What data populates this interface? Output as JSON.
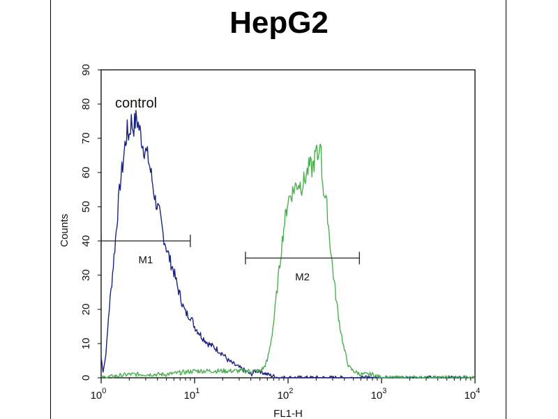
{
  "chart_data": {
    "type": "line",
    "title": "HepG2",
    "xlabel": "FL1-H",
    "ylabel": "Counts",
    "x_scale": "log",
    "xlim": [
      1,
      10000
    ],
    "ylim": [
      0,
      90
    ],
    "x_ticks": [
      {
        "value": 1,
        "label": "10",
        "exp": "0"
      },
      {
        "value": 10,
        "label": "10",
        "exp": "1"
      },
      {
        "value": 100,
        "label": "10",
        "exp": "2"
      },
      {
        "value": 1000,
        "label": "10",
        "exp": "3"
      },
      {
        "value": 10000,
        "label": "10",
        "exp": "4"
      }
    ],
    "y_ticks": [
      0,
      10,
      20,
      30,
      40,
      50,
      60,
      70,
      80,
      90
    ],
    "grid": false,
    "annotation": "control",
    "series": [
      {
        "color": "#1a237e",
        "x": [
          1.0,
          1.05,
          1.1,
          1.15,
          1.2,
          1.3,
          1.4,
          1.5,
          1.6,
          1.7,
          1.8,
          1.9,
          2.0,
          2.1,
          2.2,
          2.4,
          2.6,
          2.8,
          3.0,
          3.2,
          3.5,
          3.8,
          4.2,
          4.6,
          5.0,
          5.5,
          6.0,
          6.5,
          7.0,
          7.5,
          8.0,
          9.0,
          10.0,
          12.0,
          14.0,
          16.0,
          18.0,
          20.0,
          23.0,
          26.0,
          30.0,
          35.0,
          40.0,
          45.0,
          50.0,
          60.0,
          80.0,
          100.0,
          150.0,
          200.0,
          500.0,
          1000.0,
          10000.0
        ],
        "y": [
          6,
          2,
          5,
          10,
          18,
          28,
          38,
          48,
          57,
          62,
          68,
          72,
          71,
          75,
          73,
          76,
          72,
          68,
          66,
          64,
          58,
          52,
          48,
          42,
          38,
          34,
          31,
          27,
          24,
          21,
          19,
          18,
          15,
          12,
          10,
          9,
          8,
          7,
          5,
          4,
          3,
          2,
          1,
          2,
          2,
          1,
          0,
          0,
          0,
          0,
          0,
          0,
          0
        ]
      },
      {
        "color": "#4caf50",
        "x": [
          1.0,
          2.0,
          5.0,
          10.0,
          20.0,
          30.0,
          40.0,
          50.0,
          55.0,
          60.0,
          65.0,
          70.0,
          75.0,
          80.0,
          85.0,
          90.0,
          95.0,
          100.0,
          110.0,
          120.0,
          130.0,
          140.0,
          150.0,
          160.0,
          170.0,
          180.0,
          190.0,
          200.0,
          210.0,
          220.0,
          230.0,
          240.0,
          260.0,
          280.0,
          300.0,
          330.0,
          360.0,
          400.0,
          450.0,
          500.0,
          600.0,
          800.0,
          1000.0,
          2000.0,
          10000.0
        ],
        "y": [
          0,
          1,
          1,
          2,
          2,
          2,
          2,
          2,
          3,
          5,
          10,
          16,
          24,
          31,
          38,
          44,
          48,
          52,
          54,
          56,
          57,
          56,
          58,
          60,
          62,
          61,
          63,
          66,
          64,
          71,
          60,
          55,
          50,
          40,
          32,
          22,
          15,
          8,
          3,
          2,
          1,
          1,
          0,
          0,
          0
        ]
      }
    ],
    "markers": [
      {
        "label": "M1",
        "x_start": 1.0,
        "x_end": 9.0,
        "y": 40
      },
      {
        "label": "M2",
        "x_start": 35.0,
        "x_end": 580.0,
        "y": 35
      }
    ]
  }
}
